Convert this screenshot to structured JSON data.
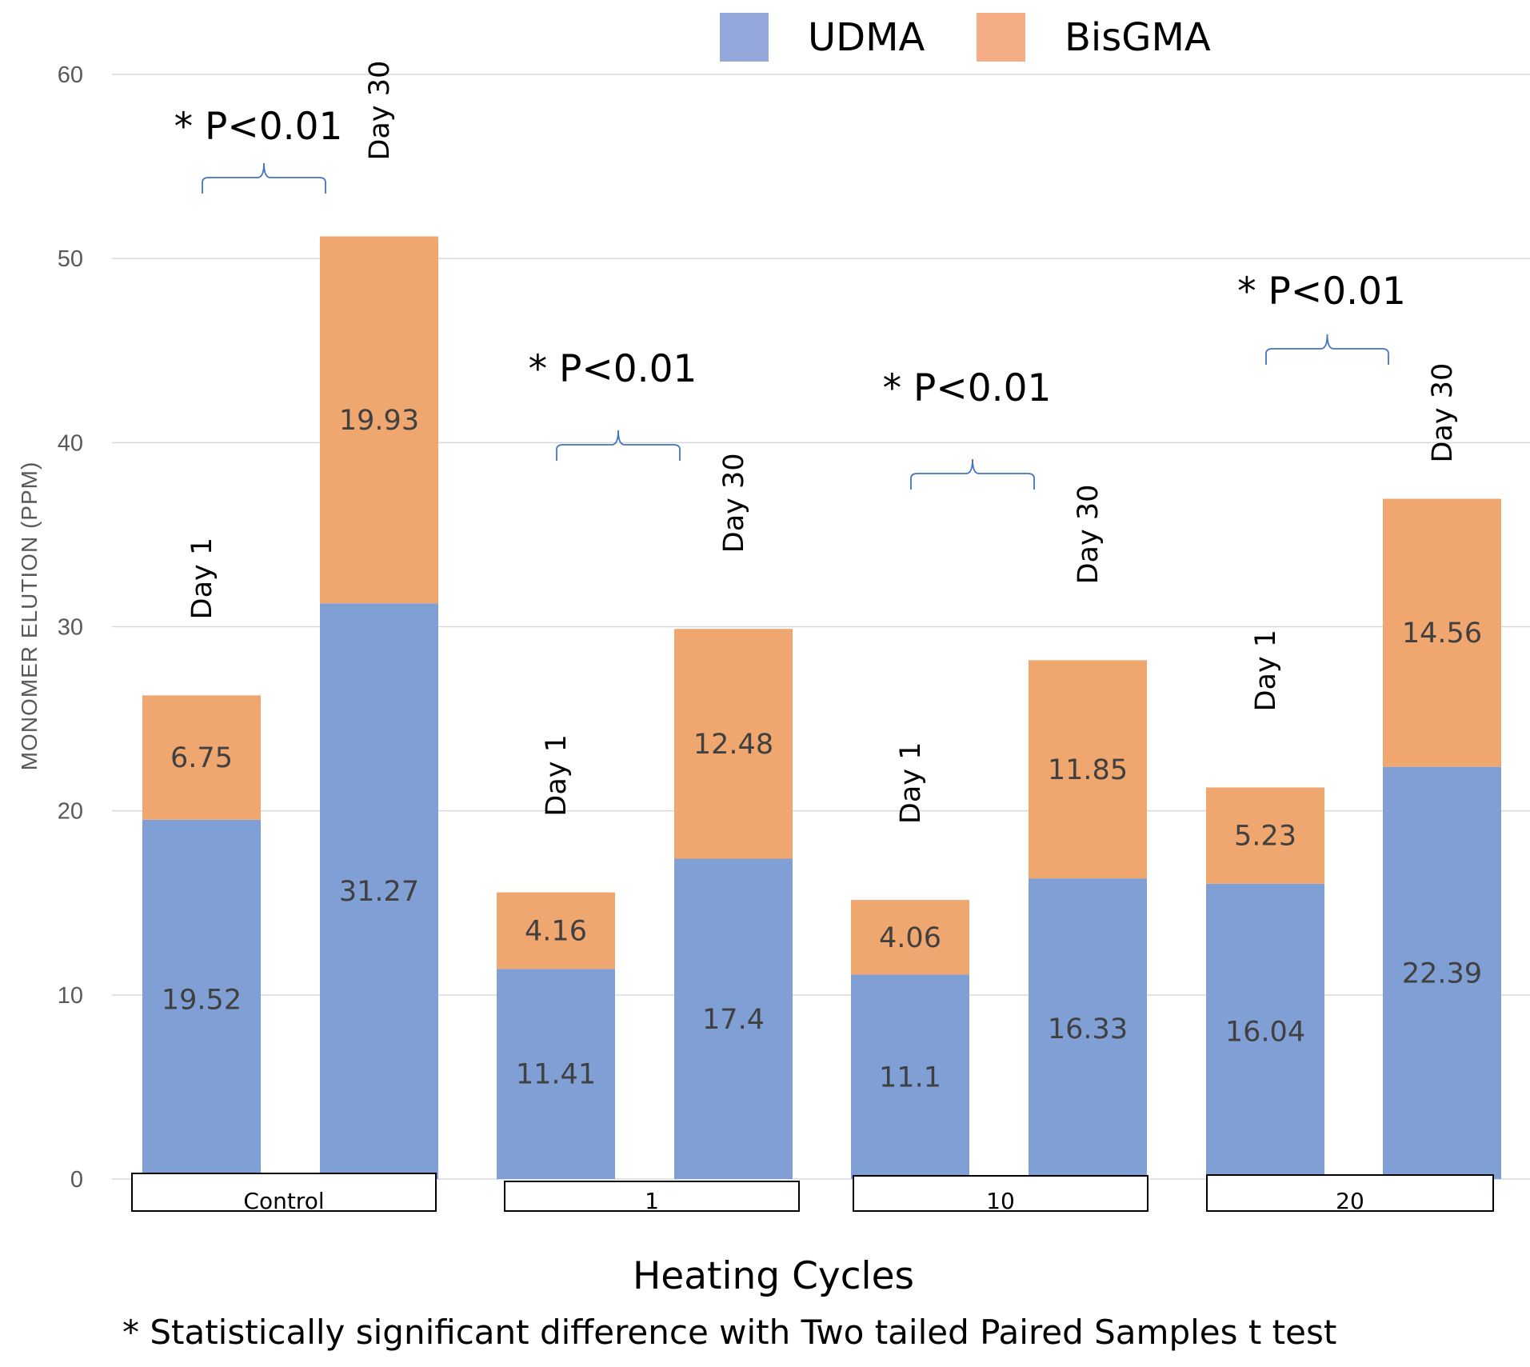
{
  "chart_data": {
    "type": "bar",
    "stacked": true,
    "ylabel": "MONOMER ELUTION (PPM)",
    "xlabel": "Heating Cycles",
    "ylim": [
      0,
      60
    ],
    "yticks": [
      0,
      10,
      20,
      30,
      40,
      50,
      60
    ],
    "grid": true,
    "legend_position": "top-right",
    "groups": [
      "Control",
      "1",
      "10",
      "20"
    ],
    "categories": [
      "Day 1",
      "Day 30",
      "Day 1",
      "Day 30",
      "Day 1",
      "Day 30",
      "Day 1",
      "Day 30"
    ],
    "series": [
      {
        "name": "UDMA",
        "color": "#7f9fd5",
        "values": [
          19.52,
          31.27,
          11.41,
          17.4,
          11.1,
          16.33,
          16.04,
          22.39
        ]
      },
      {
        "name": "BisGMA",
        "color": "#f0a66f",
        "values": [
          6.75,
          19.93,
          4.16,
          12.48,
          4.06,
          11.85,
          5.23,
          14.56
        ]
      }
    ],
    "legend_swatch_colors": [
      "#94a8dc",
      "#f5ad86"
    ],
    "annotations": [
      {
        "group": "Control",
        "text": "* P<0.01"
      },
      {
        "group": "1",
        "text": "* P<0.01"
      },
      {
        "group": "10",
        "text": "* P<0.01"
      },
      {
        "group": "20",
        "text": "* P<0.01"
      }
    ],
    "footnote": "* Statistically significant difference with Two tailed Paired Samples t test"
  }
}
